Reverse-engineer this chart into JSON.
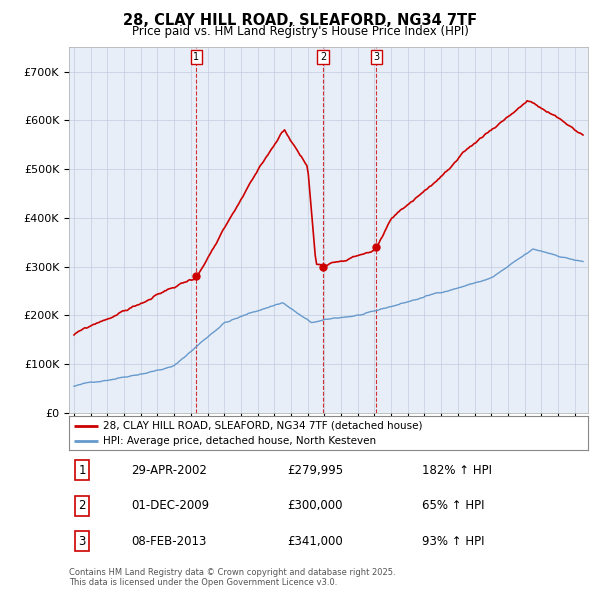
{
  "title": "28, CLAY HILL ROAD, SLEAFORD, NG34 7TF",
  "subtitle": "Price paid vs. HM Land Registry's House Price Index (HPI)",
  "background_color": "#ffffff",
  "plot_bg_color": "#e8eef8",
  "grid_color": "#c0cce0",
  "sale_labels": [
    "1",
    "2",
    "3"
  ],
  "sale_date_labels": [
    "29-APR-2002",
    "01-DEC-2009",
    "08-FEB-2013"
  ],
  "sale_price_labels": [
    "£279,995",
    "£300,000",
    "£341,000"
  ],
  "sale_hpi_labels": [
    "182% ↑ HPI",
    "65% ↑ HPI",
    "93% ↑ HPI"
  ],
  "sale_prices": [
    279995,
    300000,
    341000
  ],
  "sale_times": [
    2002.328,
    2009.918,
    2013.104
  ],
  "legend_house": "28, CLAY HILL ROAD, SLEAFORD, NG34 7TF (detached house)",
  "legend_hpi": "HPI: Average price, detached house, North Kesteven",
  "house_color": "#cc0000",
  "hpi_color": "#6699cc",
  "footer": "Contains HM Land Registry data © Crown copyright and database right 2025.\nThis data is licensed under the Open Government Licence v3.0.",
  "ylim": [
    0,
    750000
  ],
  "yticks": [
    0,
    100000,
    200000,
    300000,
    400000,
    500000,
    600000,
    700000
  ],
  "ytick_labels": [
    "£0",
    "£100K",
    "£200K",
    "£300K",
    "£400K",
    "£500K",
    "£600K",
    "£700K"
  ]
}
